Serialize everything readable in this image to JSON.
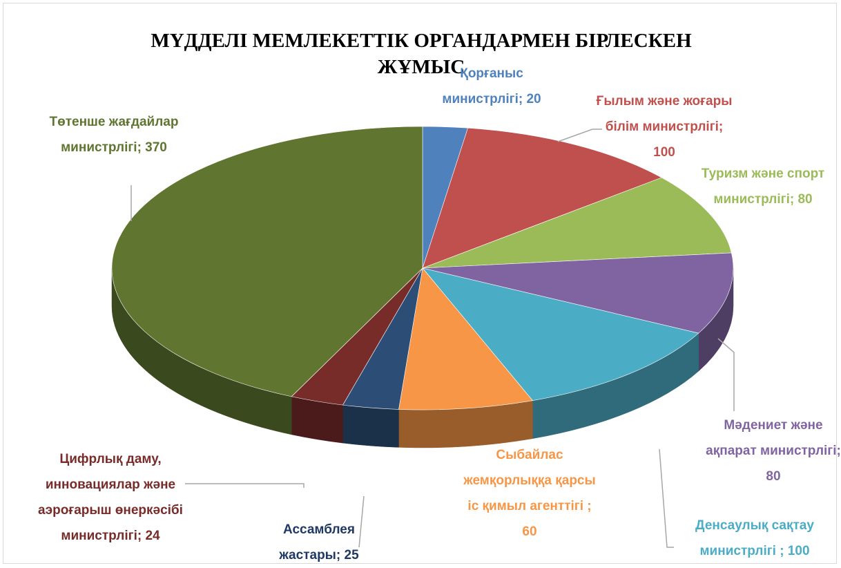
{
  "chart_data": {
    "type": "pie3d",
    "title": "МҮДДЕЛІ МЕМЛЕКЕТТІК ОРГАНДАРМЕН БІРЛЕСКЕН ЖҰМЫС",
    "values": [
      20,
      100,
      80,
      80,
      100,
      60,
      25,
      24,
      370
    ],
    "value_labels": [
      "Қорғаныс министрлігі; 20",
      "Ғылым және жоғары білім министрлігі; 100",
      "Туризм және спорт министрлігі; 80",
      "Мәдениет және ақпарат министрлігі; 80",
      "Денсаулық  сақтау министрлігі ; 100",
      "Сыбайлас жемқорлыққа қарсы іс қимыл агенттігі ; 60",
      "Ассамблея жастары; 25",
      "Цифрлық даму, инновациялар және аэроғарыш өнеркәсібі министрлігі; 24",
      "Төтенше жағдайлар министрлігі; 370"
    ],
    "colors": [
      "#4f81bd",
      "#c0504d",
      "#9bbb59",
      "#8064a2",
      "#4bacc6",
      "#f79646",
      "#2c4d75",
      "#772c2a",
      "#5f7530"
    ]
  }
}
